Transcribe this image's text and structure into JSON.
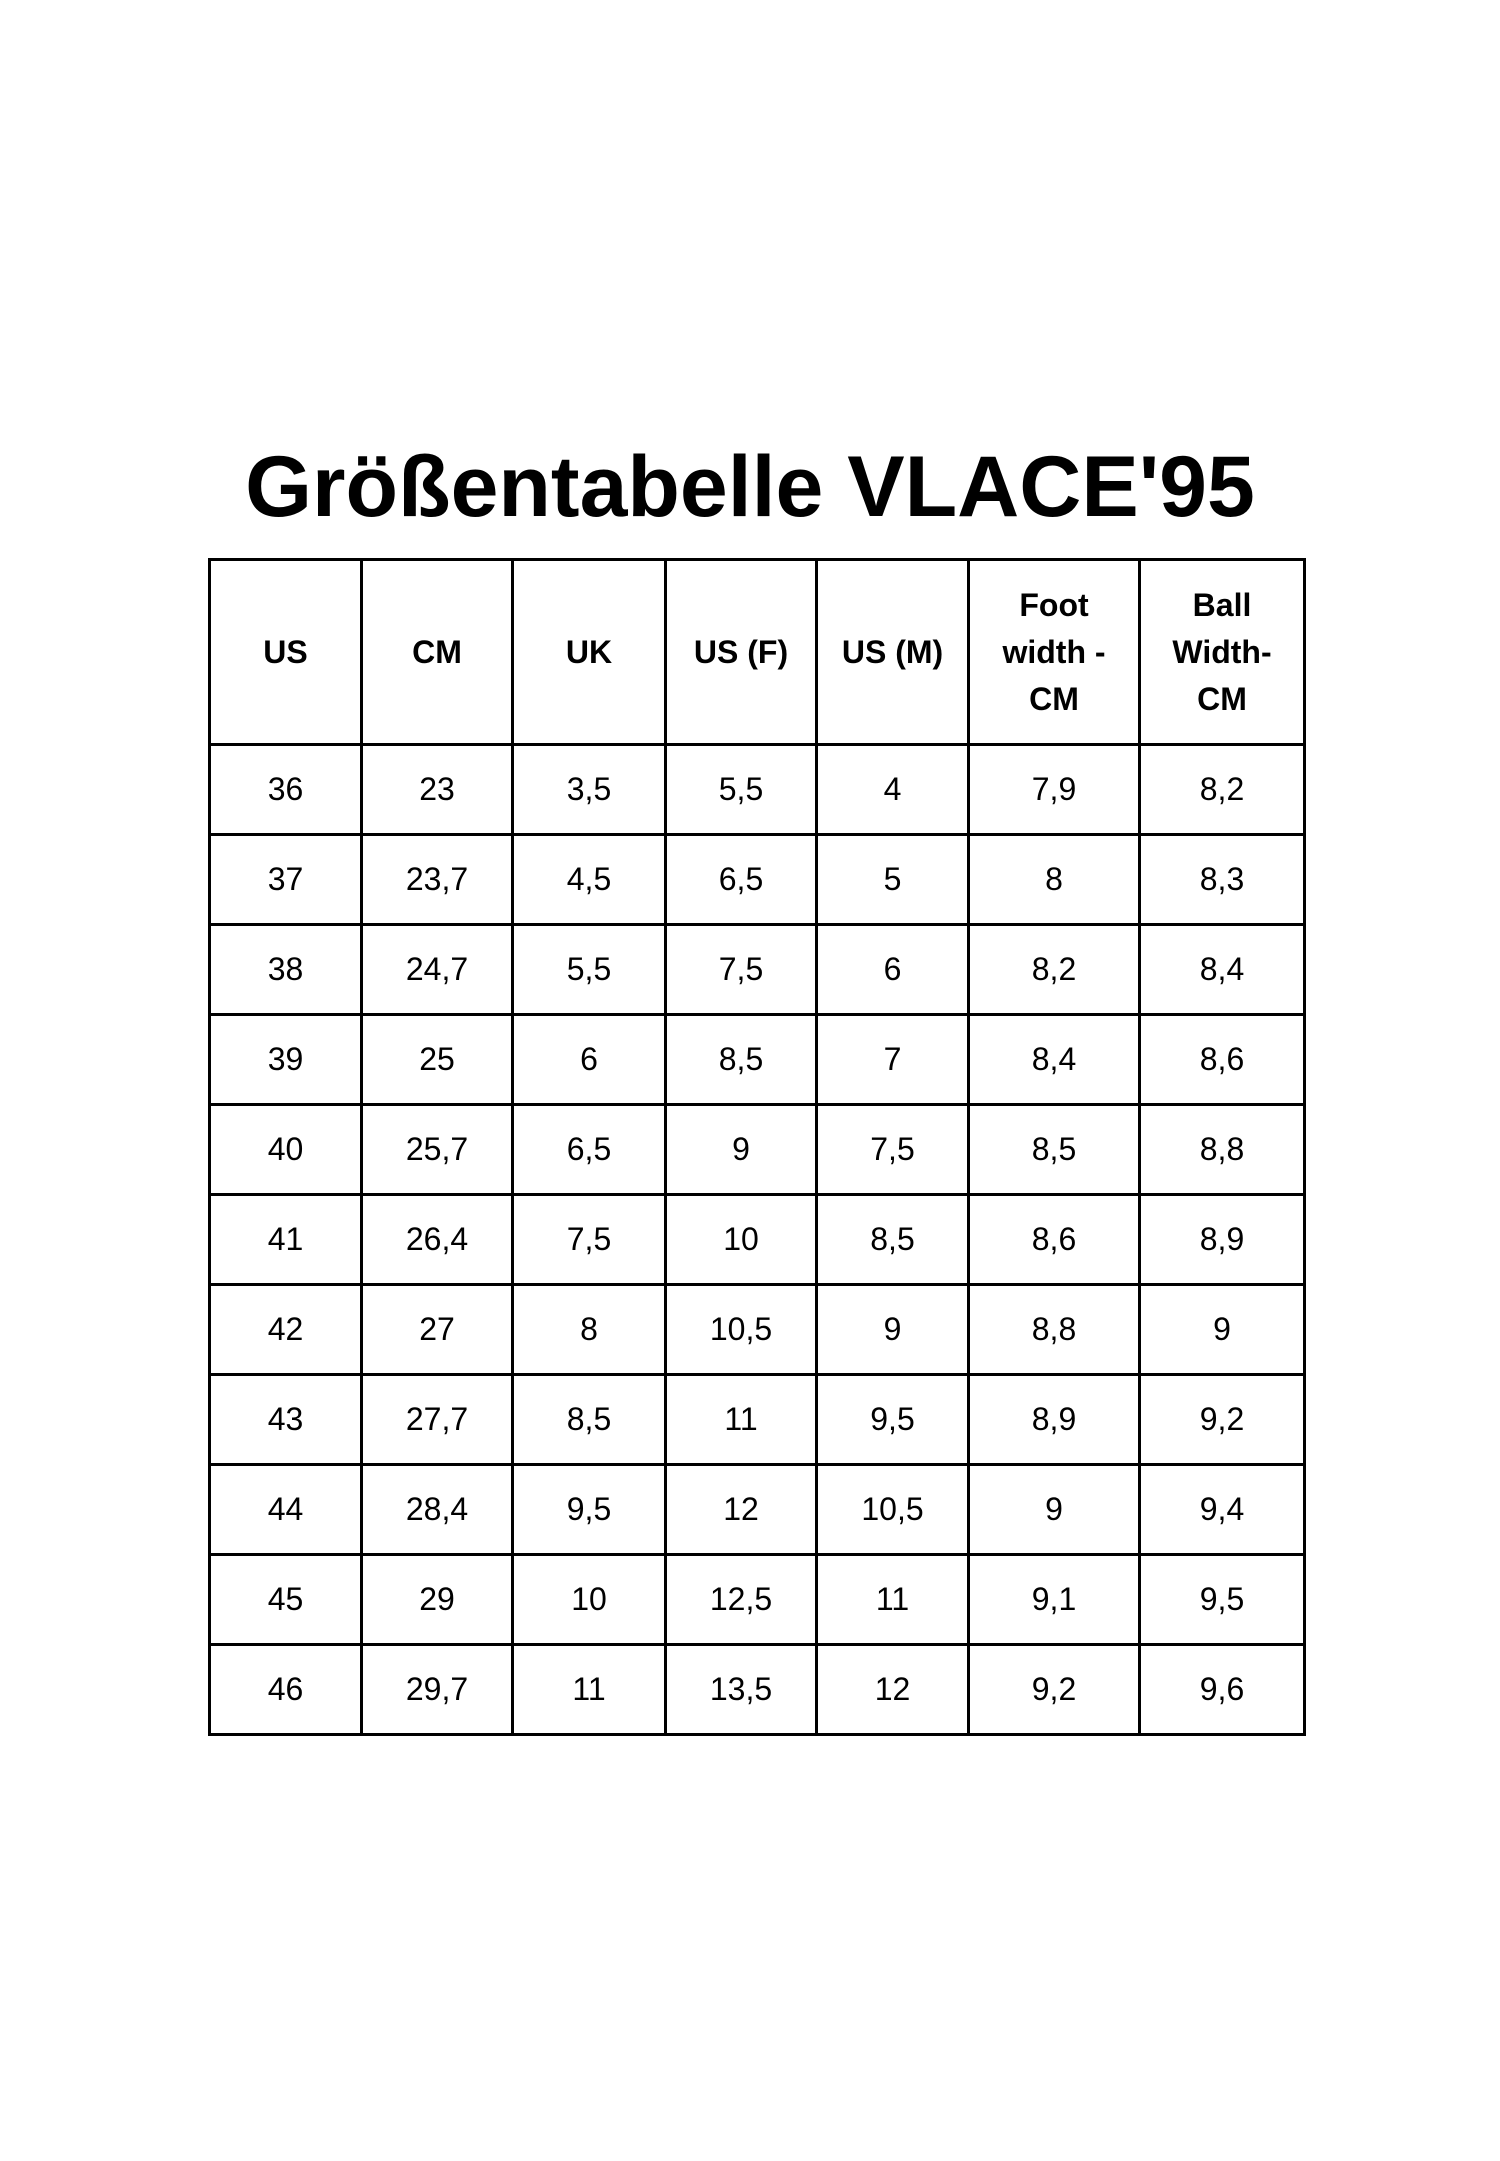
{
  "title": "Größentabelle VLACE'95",
  "table": {
    "header": [
      "US",
      "CM",
      "UK",
      "US (F)",
      "US (M)",
      "Foot width - CM",
      "Ball Width- CM"
    ],
    "rows": [
      [
        "36",
        "23",
        "3,5",
        "5,5",
        "4",
        "7,9",
        "8,2"
      ],
      [
        "37",
        "23,7",
        "4,5",
        "6,5",
        "5",
        "8",
        "8,3"
      ],
      [
        "38",
        "24,7",
        "5,5",
        "7,5",
        "6",
        "8,2",
        "8,4"
      ],
      [
        "39",
        "25",
        "6",
        "8,5",
        "7",
        "8,4",
        "8,6"
      ],
      [
        "40",
        "25,7",
        "6,5",
        "9",
        "7,5",
        "8,5",
        "8,8"
      ],
      [
        "41",
        "26,4",
        "7,5",
        "10",
        "8,5",
        "8,6",
        "8,9"
      ],
      [
        "42",
        "27",
        "8",
        "10,5",
        "9",
        "8,8",
        "9"
      ],
      [
        "43",
        "27,7",
        "8,5",
        "11",
        "9,5",
        "8,9",
        "9,2"
      ],
      [
        "44",
        "28,4",
        "9,5",
        "12",
        "10,5",
        "9",
        "9,4"
      ],
      [
        "45",
        "29",
        "10",
        "12,5",
        "11",
        "9,1",
        "9,5"
      ],
      [
        "46",
        "29,7",
        "11",
        "13,5",
        "12",
        "9,2",
        "9,6"
      ]
    ]
  }
}
